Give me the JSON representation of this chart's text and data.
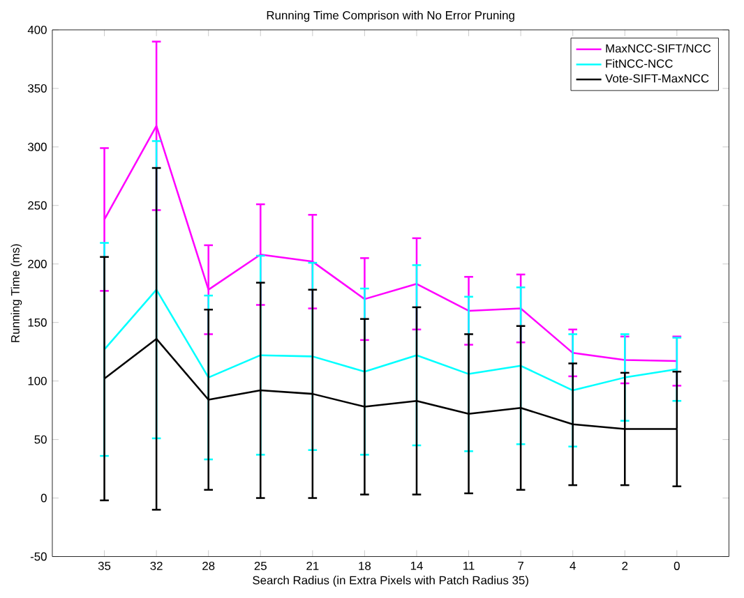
{
  "chart_data": {
    "type": "line",
    "title": "Running Time Comprison with No Error Pruning",
    "xlabel": "Search Radius (in Extra Pixels with Patch Radius 35)",
    "ylabel": "Running Time (ms)",
    "categories": [
      "35",
      "32",
      "28",
      "25",
      "21",
      "18",
      "14",
      "11",
      "7",
      "4",
      "2",
      "0"
    ],
    "series": [
      {
        "name": "MaxNCC-SIFT/NCC",
        "color": "#ff00ff",
        "values": [
          238,
          318,
          178,
          208,
          202,
          170,
          183,
          160,
          162,
          124,
          118,
          117
        ],
        "errors": [
          61,
          72,
          38,
          43,
          40,
          35,
          39,
          29,
          29,
          20,
          20,
          21
        ]
      },
      {
        "name": "FitNCC-NCC",
        "color": "#00ffff",
        "values": [
          127,
          178,
          103,
          122,
          121,
          108,
          122,
          106,
          113,
          92,
          103,
          110
        ],
        "errors": [
          91,
          127,
          70,
          85,
          80,
          71,
          77,
          66,
          67,
          48,
          37,
          27
        ]
      },
      {
        "name": "Vote-SIFT-MaxNCC",
        "color": "#000000",
        "values": [
          102,
          136,
          84,
          92,
          89,
          78,
          83,
          72,
          77,
          63,
          59,
          59
        ],
        "errors": [
          104,
          146,
          77,
          92,
          89,
          75,
          80,
          68,
          70,
          52,
          48,
          49
        ]
      }
    ],
    "ylim": [
      -50,
      400
    ],
    "yticks": [
      -50,
      0,
      50,
      100,
      150,
      200,
      250,
      300,
      350,
      400
    ],
    "legend": "top right",
    "grid": false,
    "marker": "none",
    "line_style": "solid"
  }
}
